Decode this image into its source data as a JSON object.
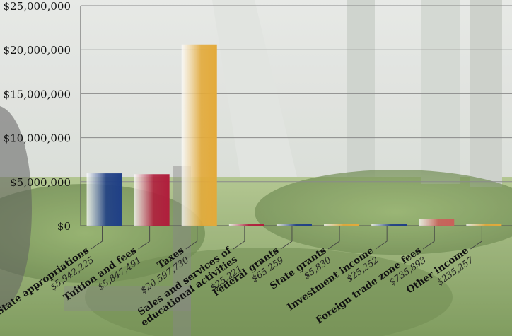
{
  "chart_data": {
    "type": "bar",
    "categories": [
      "State appropriations",
      "Tuition and fees",
      "Taxes",
      "Sales and services of educational activities",
      "Federal grants",
      "State grants",
      "Investment income",
      "Foreign trade zone fees",
      "Other income"
    ],
    "category_lines": [
      [
        "State appropriations"
      ],
      [
        "Tuition and fees"
      ],
      [
        "Taxes"
      ],
      [
        "Sales and services of",
        "educational activities"
      ],
      [
        "Federal grants"
      ],
      [
        "State grants"
      ],
      [
        "Investment income"
      ],
      [
        "Foreign trade zone fees"
      ],
      [
        "Other income"
      ]
    ],
    "values": [
      5942225,
      5847491,
      20597730,
      25221,
      65259,
      5830,
      25252,
      735893,
      235257
    ],
    "value_labels": [
      "$5,942,225",
      "$5,847,491",
      "$20,597,730",
      "$25,221",
      "$65,259",
      "$5,830",
      "$25,252",
      "$735,893",
      "$235,257"
    ],
    "ylim": [
      0,
      25000000
    ],
    "yticks": [
      0,
      5000000,
      10000000,
      15000000,
      20000000,
      25000000
    ],
    "ytick_labels": [
      "$0",
      "$5,000,000",
      "$10,000,000",
      "$15,000,000",
      "$20,000,000",
      "$25,000,000"
    ],
    "grid": true,
    "legend": "none",
    "title": "",
    "xlabel": "",
    "ylabel": "",
    "colors": [
      "#1f3f86",
      "#b01e3c",
      "#e3aa3a",
      "#b01e3c",
      "#1f3f86",
      "#e3aa3a",
      "#1f3f86",
      "#c9615a",
      "#e3aa3a"
    ]
  }
}
